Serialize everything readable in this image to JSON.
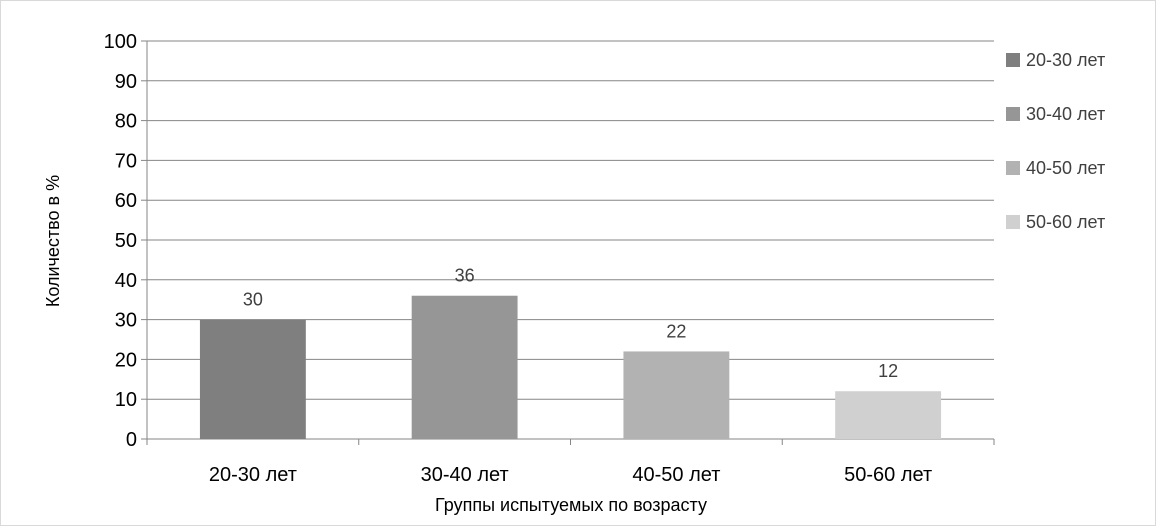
{
  "chart_data": {
    "type": "bar",
    "title": "",
    "xlabel": "Группы испытуемых по возрасту",
    "ylabel": "Количество в %",
    "categories": [
      "20-30 лет",
      "30-40 лет",
      "40-50 лет",
      "50-60 лет"
    ],
    "values": [
      30,
      36,
      22,
      12
    ],
    "data_labels": [
      "30",
      "36",
      "22",
      "12"
    ],
    "series": [
      {
        "name": "20-30 лет",
        "values": [
          30,
          null,
          null,
          null
        ],
        "color": "#7f7f7f"
      },
      {
        "name": "30-40 лет",
        "values": [
          null,
          36,
          null,
          null
        ],
        "color": "#969696"
      },
      {
        "name": "40-50 лет",
        "values": [
          null,
          null,
          22,
          null
        ],
        "color": "#b2b2b2"
      },
      {
        "name": "50-60 лет",
        "values": [
          null,
          null,
          null,
          12
        ],
        "color": "#d0d0d0"
      }
    ],
    "ylim": [
      0,
      100
    ],
    "yticks": [
      0,
      10,
      20,
      30,
      40,
      50,
      60,
      70,
      80,
      90,
      100
    ],
    "grid": true,
    "legend_position": "right"
  }
}
